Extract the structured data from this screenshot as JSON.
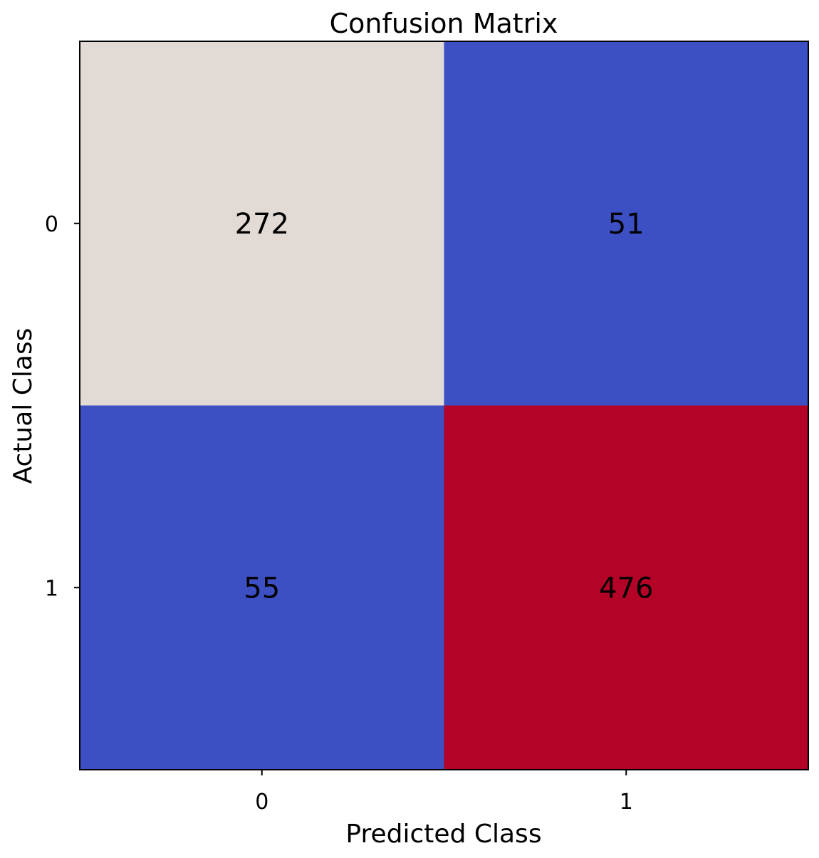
{
  "chart_data": {
    "type": "heatmap",
    "title": "Confusion Matrix",
    "xlabel": "Predicted Class",
    "ylabel": "Actual Class",
    "x_categories": [
      "0",
      "1"
    ],
    "y_categories": [
      "0",
      "1"
    ],
    "values": [
      [
        272,
        51
      ],
      [
        55,
        476
      ]
    ],
    "colors": [
      [
        "#e2dad5",
        "#3c50c4"
      ],
      [
        "#3c50c4",
        "#b30327"
      ]
    ],
    "colormap": "coolwarm",
    "grid": false,
    "legend": "none"
  }
}
